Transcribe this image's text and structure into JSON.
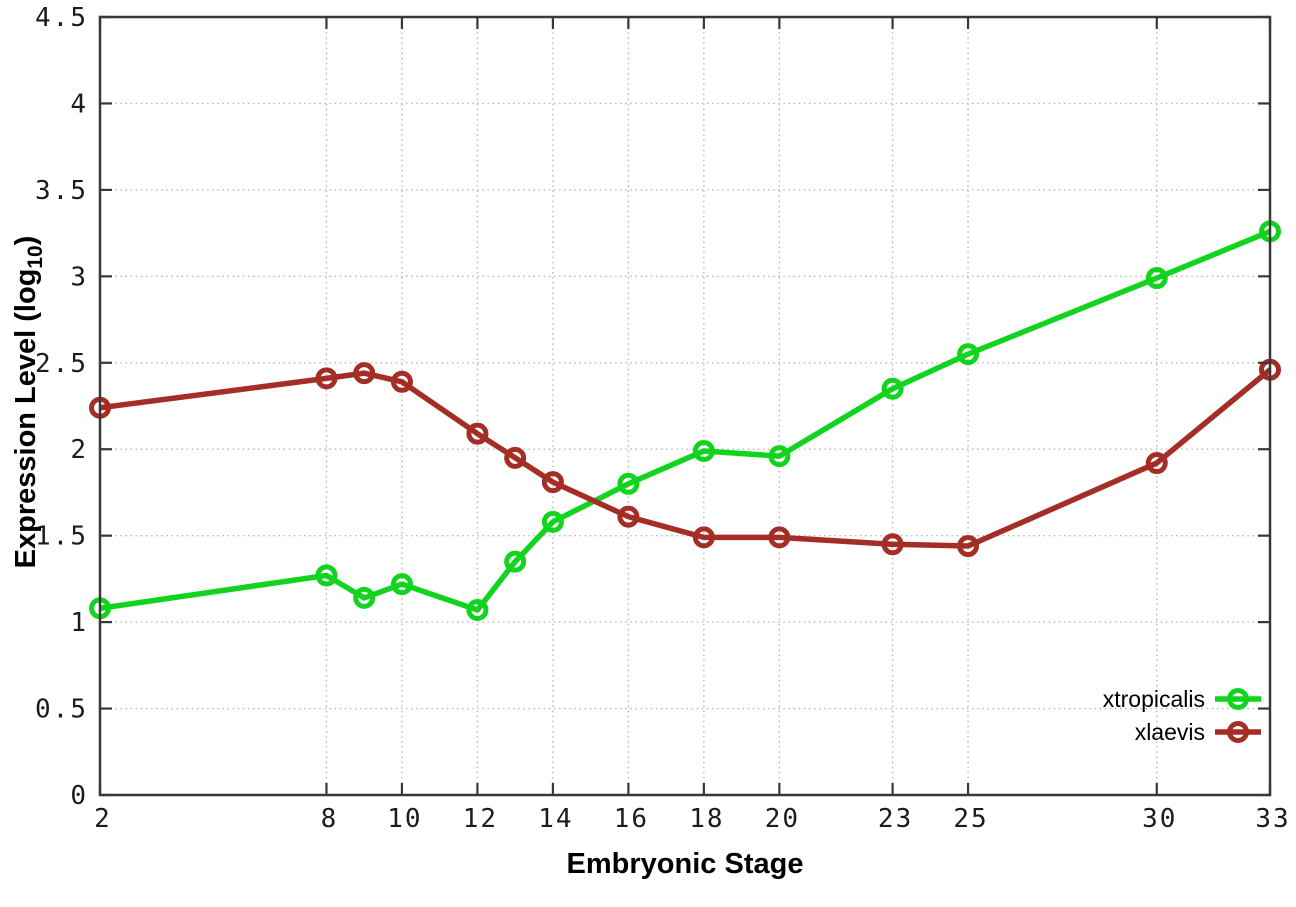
{
  "figure": {
    "background": "#ffffff",
    "axis_color": "#383838",
    "grid_color": "#b7b7b7",
    "tick_label_color": "#1c1c1c"
  },
  "chart_data": {
    "type": "line",
    "title": "",
    "xlabel": "Embryonic Stage",
    "ylabel": "Expression Level (log10)",
    "ylabel_parts": {
      "prefix": "Expression Level (log",
      "sub": "10",
      "suffix": ")"
    },
    "xlim": [
      2,
      33
    ],
    "ylim": [
      0,
      4.5
    ],
    "xticks": [
      2,
      8,
      10,
      12,
      14,
      16,
      18,
      20,
      23,
      25,
      30,
      33
    ],
    "xtick_labels": [
      "2",
      "8",
      "10",
      "12",
      "14",
      "16",
      "18",
      "20",
      "23",
      "25",
      "30",
      "33"
    ],
    "yticks": [
      0,
      0.5,
      1,
      1.5,
      2,
      2.5,
      3,
      3.5,
      4,
      4.5
    ],
    "ytick_labels": [
      "0",
      "0.5",
      "1",
      "1.5",
      "2",
      "2.5",
      "3",
      "3.5",
      "4",
      "4.5"
    ],
    "grid": true,
    "legend_position": "bottom-right",
    "marker": "open-circle",
    "x": [
      2,
      8,
      9,
      10,
      12,
      13,
      14,
      16,
      18,
      20,
      23,
      25,
      30,
      33
    ],
    "series": [
      {
        "name": "xtropicalis",
        "color": "#12d41f",
        "values": [
          1.08,
          1.27,
          1.14,
          1.22,
          1.07,
          1.35,
          1.58,
          1.8,
          1.99,
          1.96,
          2.35,
          2.55,
          2.99,
          3.26
        ]
      },
      {
        "name": "xlaevis",
        "color": "#a42d26",
        "values": [
          2.24,
          2.41,
          2.44,
          2.39,
          2.09,
          1.95,
          1.81,
          1.61,
          1.49,
          1.49,
          1.45,
          1.44,
          1.92,
          2.46
        ]
      }
    ]
  }
}
